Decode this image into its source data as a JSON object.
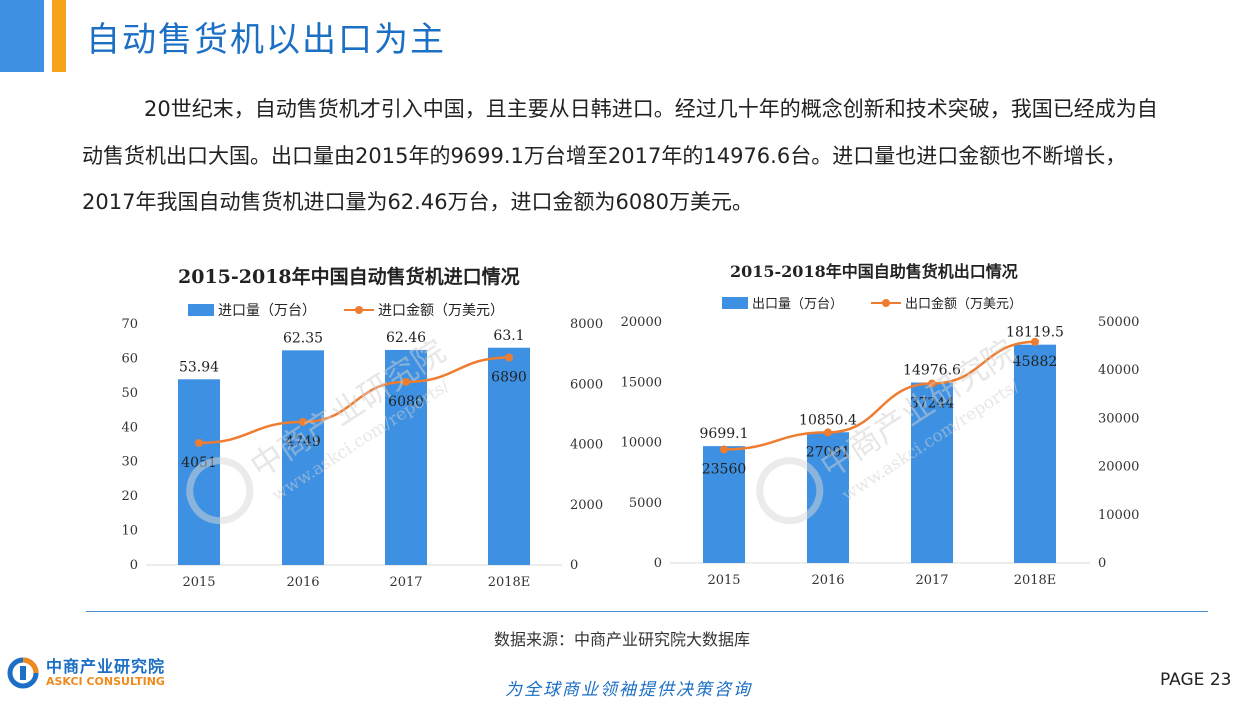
{
  "header": {
    "title": "自动售货机以出口为主"
  },
  "body_text": "20世纪末，自动售货机才引入中国，且主要从日韩进口。经过几十年的概念创新和技术突破，我国已经成为自动售货机出口大国。出口量由2015年的9699.1万台增至2017年的14976.6台。进口量也进口金额也不断增长，2017年我国自动售货机进口量为62.46万台，进口金额为6080万美元。",
  "colors": {
    "bar": "#3e91e2",
    "line": "#ee7d31",
    "accent": "#1b6fc4",
    "orange": "#f7a21b"
  },
  "chart_data": [
    {
      "type": "bar",
      "title": "2015-2018年中国自动售货机进口情况",
      "categories": [
        "2015",
        "2016",
        "2017",
        "2018E"
      ],
      "series": [
        {
          "name": "进口量（万台）",
          "type": "bar",
          "axis": "left",
          "values": [
            53.94,
            62.35,
            62.46,
            63.1
          ],
          "labels": [
            "53.94",
            "62.35",
            "62.46",
            "63.1"
          ]
        },
        {
          "name": "进口金额（万美元）",
          "type": "line",
          "axis": "right",
          "values": [
            4051,
            4749,
            6080,
            6890
          ],
          "labels": [
            "4051",
            "4749",
            "6080",
            "6890"
          ]
        }
      ],
      "y_left": {
        "min": 0,
        "max": 70,
        "ticks": [
          "0",
          "10",
          "20",
          "30",
          "40",
          "50",
          "60",
          "70"
        ]
      },
      "y_right": {
        "min": 0,
        "max": 8000,
        "ticks": [
          "0",
          "2000",
          "4000",
          "6000",
          "8000"
        ]
      },
      "legend": "top",
      "grid": false
    },
    {
      "type": "bar",
      "title": "2015-2018年中国自助售货机出口情况",
      "categories": [
        "2015",
        "2016",
        "2017",
        "2018E"
      ],
      "series": [
        {
          "name": "出口量（万台）",
          "type": "bar",
          "axis": "left",
          "values": [
            9699.1,
            10850.4,
            14976.6,
            18119.5
          ],
          "labels": [
            "9699.1",
            "10850.4",
            "14976.6",
            "18119.5"
          ]
        },
        {
          "name": "出口金额（万美元）",
          "type": "line",
          "axis": "right",
          "values": [
            23560,
            27091,
            37244,
            45882
          ],
          "labels": [
            "23560",
            "27091",
            "37244",
            "45882"
          ]
        }
      ],
      "y_left": {
        "min": 0,
        "max": 20000,
        "ticks": [
          "0",
          "5000",
          "10000",
          "15000",
          "20000"
        ]
      },
      "y_right": {
        "min": 0,
        "max": 50000,
        "ticks": [
          "0",
          "10000",
          "20000",
          "30000",
          "40000",
          "50000"
        ]
      },
      "legend": "top",
      "grid": false
    }
  ],
  "watermark": {
    "brand": "中商产业研究院",
    "url": "www.askci.com/reports/"
  },
  "footer": {
    "source": "数据来源：中商产业研究院大数据库",
    "logo_cn": "中商产业研究院",
    "logo_en": "ASKCI CONSULTING",
    "slogan": "为全球商业领袖提供决策咨询",
    "page": "PAGE  23"
  }
}
